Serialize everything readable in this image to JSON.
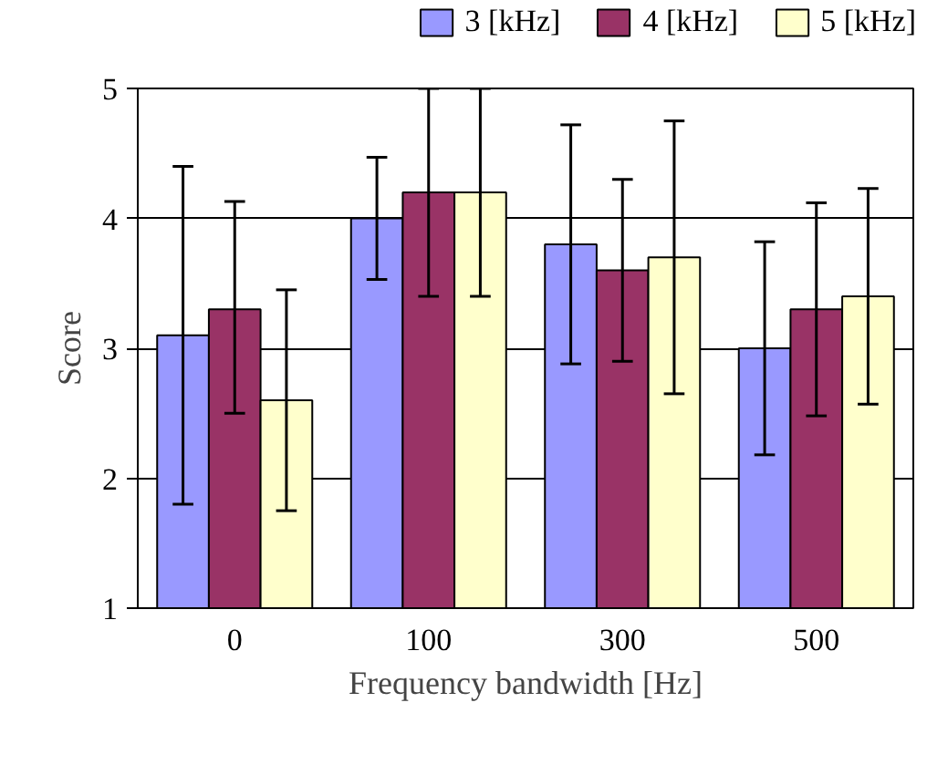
{
  "chart_data": {
    "type": "bar",
    "xlabel": "Frequency bandwidth [Hz]",
    "ylabel": "Score",
    "categories": [
      "0",
      "100",
      "300",
      "500"
    ],
    "series": [
      {
        "name": "3 [kHz]",
        "color": "#9999ff",
        "values": [
          3.1,
          4.0,
          3.8,
          3.0
        ],
        "errors": [
          [
            1.8,
            4.4
          ],
          [
            3.53,
            4.47
          ],
          [
            2.88,
            4.72
          ],
          [
            2.18,
            3.82
          ]
        ]
      },
      {
        "name": "4 [kHz]",
        "color": "#993366",
        "values": [
          3.3,
          4.2,
          3.6,
          3.3
        ],
        "errors": [
          [
            2.5,
            4.13
          ],
          [
            3.4,
            5.0
          ],
          [
            2.9,
            4.3
          ],
          [
            2.48,
            4.12
          ]
        ]
      },
      {
        "name": "5 [kHz]",
        "color": "#ffffcc",
        "values": [
          2.6,
          4.2,
          3.7,
          3.4
        ],
        "errors": [
          [
            1.75,
            3.45
          ],
          [
            3.4,
            5.0
          ],
          [
            2.65,
            4.75
          ],
          [
            2.57,
            4.23
          ]
        ]
      }
    ],
    "ylim": [
      1,
      5
    ],
    "yticks": [
      1,
      2,
      3,
      4,
      5
    ],
    "grid": "y",
    "legend": "top"
  }
}
